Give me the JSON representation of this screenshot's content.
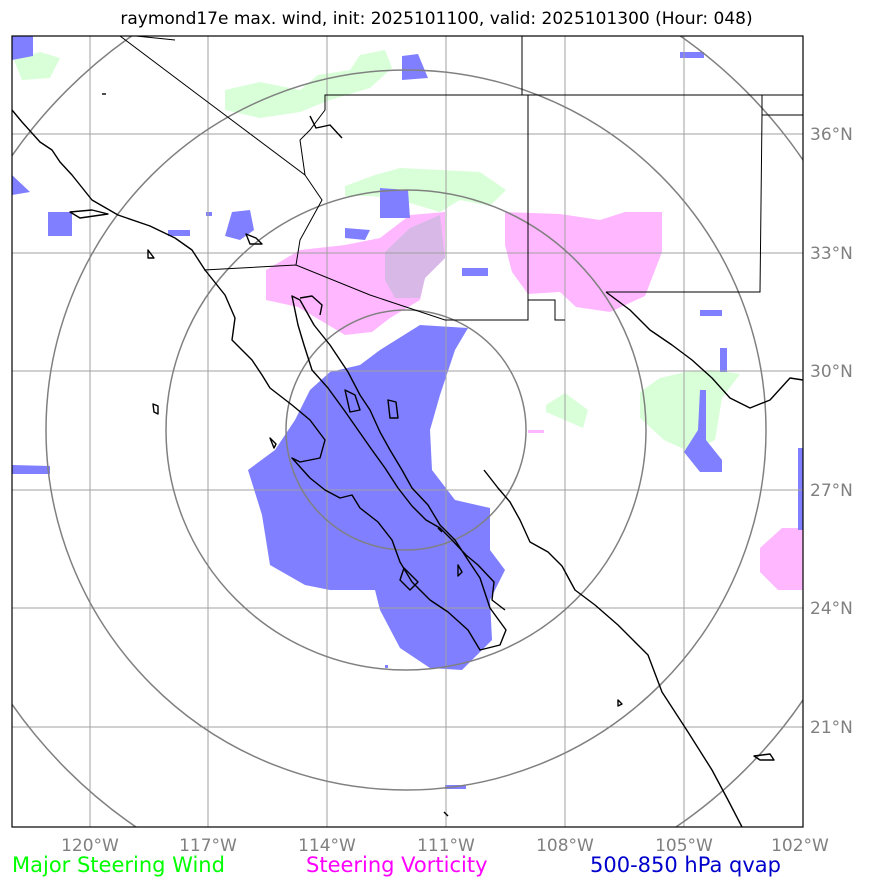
{
  "title": "raymond17e max. wind, init: 2025101100, valid: 2025101300 (Hour: 048)",
  "axes": {
    "lon_ticks": [
      "120°W",
      "117°W",
      "114°W",
      "111°W",
      "108°W",
      "105°W",
      "102°W"
    ],
    "lat_ticks": [
      "36°N",
      "33°N",
      "30°N",
      "27°N",
      "24°N",
      "21°N"
    ]
  },
  "legend": {
    "wind": "Major Steering Wind",
    "vorticity": "Steering Vorticity",
    "qvap": "500-850 hPa qvap"
  },
  "colors": {
    "wind": "#00ff00",
    "vorticity": "#ff00ff",
    "qvap": "#0000cc",
    "wind_fill": "#d8ffd8",
    "vort_fill": "#ffb8ff",
    "qvap_fill": "#7f7fff",
    "grid": "#a0a0a0",
    "rings": "#808080"
  }
}
